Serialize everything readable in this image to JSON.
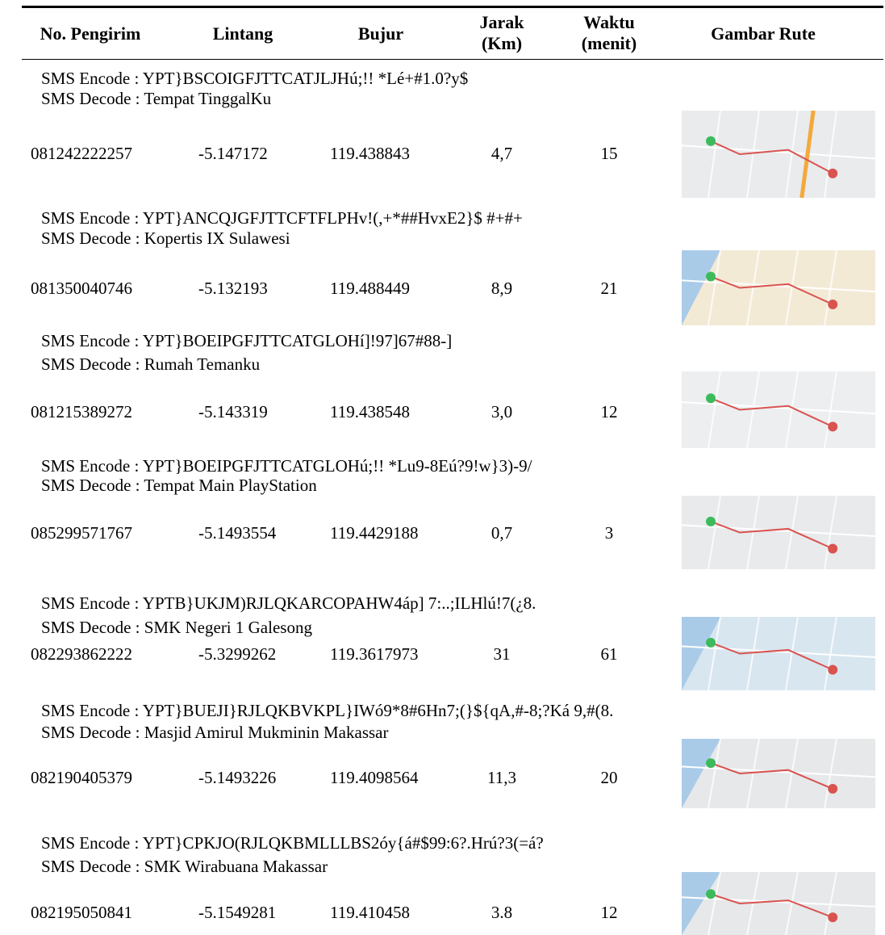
{
  "table": {
    "header": [
      "No. Pengirim",
      "Lintang",
      "Bujur",
      "Jarak\n(Km)",
      "Waktu\n(menit)",
      "Gambar Rute"
    ],
    "rows": [
      {
        "encode": "SMS Encode : YPT}BSCOIGFJTTCATJLJHú;!! *Lé+#1.0?y$",
        "decode": "SMS Decode : Tempat TinggalKu",
        "cells": [
          "081242222257",
          "-5.147172",
          "119.438843",
          "4,7",
          "15"
        ]
      },
      {
        "encode": "SMS Encode : YPT}ANCQJGFJTTCFTFLPHv!(,+*##HvxE2}$ #+#+",
        "decode": "SMS Decode : Kopertis IX Sulawesi",
        "cells": [
          "081350040746",
          "-5.132193",
          "119.488449",
          "8,9",
          "21"
        ]
      },
      {
        "encode": "SMS Encode : YPT}BOEIPGFJTTCATGLOHí]!97]67#88-]",
        "decode": "SMS Decode : Rumah Temanku",
        "cells": [
          "081215389272",
          "-5.143319",
          "119.438548",
          "3,0",
          "12"
        ]
      },
      {
        "encode": "SMS Encode : YPT}BOEIPGFJTTCATGLOHú;!! *Lu9-8Eú?9!w}3)-9/",
        "decode": "SMS Decode : Tempat Main PlayStation",
        "cells": [
          "085299571767",
          "-5.1493554",
          "119.4429188",
          "0,7",
          "3"
        ]
      },
      {
        "encode": "SMS Encode : YPTB}UKJM)RJLQKARCOPAHW4áp] 7:..;ILHlú!7(¿8.",
        "decode": "SMS Decode : SMK Negeri 1 Galesong",
        "cells": [
          "082293862222",
          "-5.3299262",
          "119.3617973",
          "31",
          "61"
        ]
      },
      {
        "encode": "SMS Encode : YPT}BUEJI}RJLQKBVKPL}IWó9*8#6Hn7;(}${qA,#-8;?Ká 9,#(8.",
        "decode": "SMS Decode : Masjid Amirul Mukminin Makassar",
        "cells": [
          "082190405379",
          "-5.1493226",
          "119.4098564",
          "11,3",
          "20"
        ]
      },
      {
        "encode": "SMS Encode : YPT}CPKJO(RJLQKBMLLLBS2óy{á#$99:6?.Hrú?3(=á?",
        "decode": "SMS Decode : SMK Wirabuana Makassar",
        "cells": [
          "082195050841",
          "-5.1549281",
          "119.410458",
          "3.8",
          "12"
        ]
      }
    ]
  }
}
